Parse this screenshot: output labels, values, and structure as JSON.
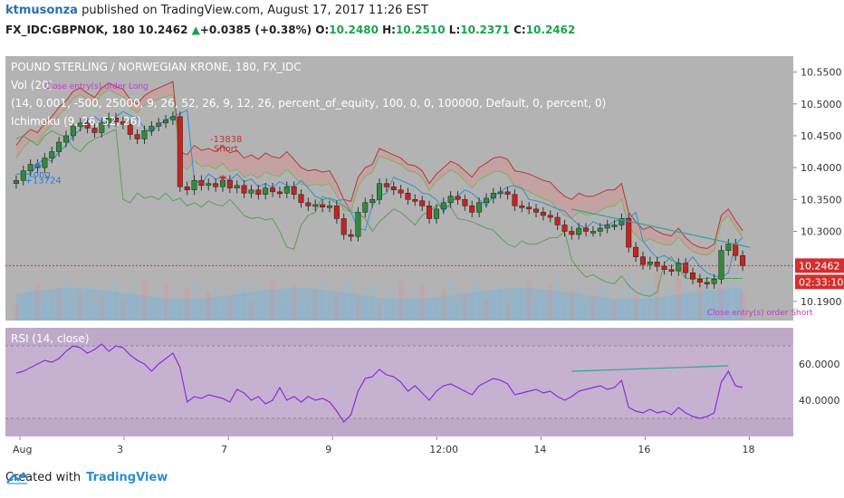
{
  "header": {
    "user": "ktmusonza",
    "published_text": "published on TradingView.com, August 17, 2017 11:26 EST",
    "symbol": "FX_IDC:GBPNOK, 180",
    "last": "10.2462",
    "change_arrow": "▲",
    "change": "+0.0385 (+0.38%)",
    "o_label": "O:",
    "o_val": "10.2480",
    "h_label": "H:",
    "h_val": "10.2510",
    "l_label": "L:",
    "l_val": "10.2371",
    "c_label": "C:",
    "c_val": "10.2462"
  },
  "footer": {
    "created_with": "Created with",
    "brand": "TradingView"
  },
  "colors": {
    "pane_bg": "#b3b3b3",
    "rsi_bg": "#bfa9c9",
    "up_candle": "#2e8b3a",
    "down_candle": "#c8221c",
    "cloud_up_line": "#7fb35a",
    "cloud_down_line": "#b03a3a",
    "cloud_fill": "#d98f8f",
    "conv_line": "#2f8fd8",
    "lagging": "#5aa05a",
    "rsi_line": "#8a2be2",
    "trend": "#2aa89a",
    "price_label": "#d32f2f",
    "dotted": "#d32f2f"
  },
  "chart_data": {
    "type": "line",
    "title": "POUND STERLING / NORWEGIAN KRONE, 180, FX_IDC",
    "legend": [
      "Vol (20)",
      "(14, 0.001, -500, 25000, 9, 26, 52, 26, 9, 12, 26, percent_of_equity, 100, 0, 0, 100000, Default, 0, percent, 0)",
      "Ichimoku (9, 26, 52, 26)"
    ],
    "x_ticks": [
      "Aug",
      "3",
      "7",
      "9",
      "12:00",
      "14",
      "16",
      "18"
    ],
    "price_ticks": [
      "10.5500",
      "10.5000",
      "10.4500",
      "10.4000",
      "10.3500",
      "10.3000",
      "10.1900"
    ],
    "price_range": [
      10.16,
      10.575
    ],
    "last_price_label": "10.2462",
    "countdown_label": "02:33:10",
    "annotations": {
      "close_long": "Close entry(s) order Long",
      "long": "Long",
      "long_profit": "+13724",
      "short": "Short",
      "short_profit": "-13838",
      "close_short": "Close entry(s) order Short"
    },
    "close": [
      10.38,
      10.395,
      10.405,
      10.4,
      10.415,
      10.425,
      10.44,
      10.45,
      10.465,
      10.47,
      10.462,
      10.455,
      10.47,
      10.478,
      10.472,
      10.468,
      10.452,
      10.445,
      10.458,
      10.465,
      10.47,
      10.475,
      10.48,
      10.37,
      10.365,
      10.38,
      10.372,
      10.375,
      10.37,
      10.38,
      10.368,
      10.372,
      10.36,
      10.365,
      10.358,
      10.368,
      10.362,
      10.36,
      10.37,
      10.358,
      10.345,
      10.34,
      10.342,
      10.338,
      10.34,
      10.32,
      10.295,
      10.292,
      10.33,
      10.345,
      10.35,
      10.375,
      10.37,
      10.365,
      10.36,
      10.35,
      10.348,
      10.34,
      10.32,
      10.335,
      10.345,
      10.355,
      10.35,
      10.34,
      10.33,
      10.345,
      10.352,
      10.36,
      10.362,
      10.358,
      10.34,
      10.338,
      10.335,
      10.33,
      10.325,
      10.322,
      10.31,
      10.3,
      10.295,
      10.305,
      10.3,
      10.3,
      10.305,
      10.31,
      10.31,
      10.32,
      10.275,
      10.26,
      10.248,
      10.252,
      10.245,
      10.24,
      10.238,
      10.25,
      10.235,
      10.225,
      10.22,
      10.218,
      10.225,
      10.27,
      10.28,
      10.262,
      10.246
    ],
    "rsi": {
      "label": "RSI (14, close)",
      "ticks": [
        "60.0000",
        "40.0000"
      ],
      "range": [
        20,
        80
      ],
      "values": [
        55,
        56,
        58,
        60,
        62,
        61,
        63,
        67,
        70,
        69,
        66,
        68,
        71,
        67,
        70,
        69,
        65,
        62,
        60,
        56,
        60,
        63,
        66,
        58,
        39,
        42,
        41,
        43,
        42,
        41,
        39,
        46,
        44,
        40,
        42,
        38,
        40,
        47,
        40,
        42,
        39,
        42,
        40,
        41,
        39,
        34,
        28,
        32,
        45,
        52,
        53,
        57,
        54,
        53,
        50,
        45,
        48,
        44,
        40,
        45,
        48,
        49,
        47,
        45,
        43,
        48,
        50,
        52,
        51,
        49,
        43,
        44,
        45,
        46,
        44,
        45,
        42,
        40,
        42,
        45,
        46,
        47,
        48,
        46,
        47,
        51,
        36,
        34,
        33,
        35,
        33,
        34,
        32,
        36,
        33,
        31,
        30,
        31,
        33,
        50,
        56,
        48,
        47
      ]
    }
  }
}
